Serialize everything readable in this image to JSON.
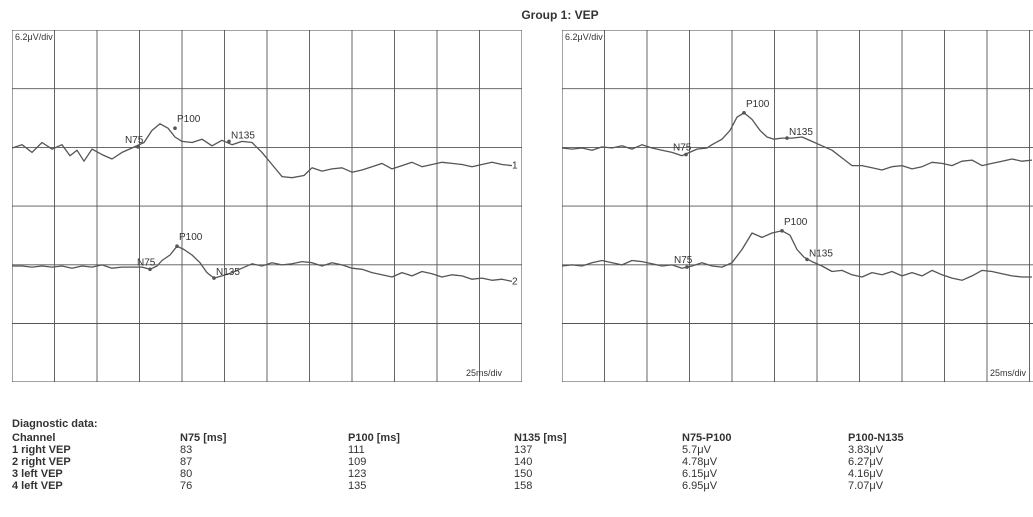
{
  "title": "Group 1: VEP",
  "chart_data": [
    {
      "type": "line",
      "panel": "left",
      "amplitude_scale": "6.2μV/div",
      "time_scale": "25ms/div",
      "traces": [
        {
          "label": "1",
          "points": [
            [
              0,
              0
            ],
            [
              10,
              0.3
            ],
            [
              20,
              -0.4
            ],
            [
              30,
              0.5
            ],
            [
              40,
              -0.1
            ],
            [
              50,
              0.3
            ],
            [
              58,
              -0.7
            ],
            [
              65,
              -0.2
            ],
            [
              72,
              -1.2
            ],
            [
              80,
              -0.1
            ],
            [
              90,
              -0.6
            ],
            [
              100,
              -1.0
            ],
            [
              110,
              -0.4
            ],
            [
              120,
              0.0
            ],
            [
              132,
              0.5
            ],
            [
              140,
              1.6
            ],
            [
              148,
              2.2
            ],
            [
              156,
              1.8
            ],
            [
              163,
              1.0
            ],
            [
              170,
              0.6
            ],
            [
              180,
              0.5
            ],
            [
              190,
              0.8
            ],
            [
              200,
              0.2
            ],
            [
              210,
              0.7
            ],
            [
              220,
              0.3
            ],
            [
              230,
              0.6
            ],
            [
              240,
              0.5
            ],
            [
              250,
              -0.4
            ],
            [
              260,
              -1.5
            ],
            [
              270,
              -2.6
            ],
            [
              280,
              -2.7
            ],
            [
              292,
              -2.5
            ],
            [
              300,
              -1.8
            ],
            [
              310,
              -2.1
            ],
            [
              320,
              -1.9
            ],
            [
              330,
              -1.8
            ],
            [
              340,
              -2.2
            ],
            [
              350,
              -2.0
            ],
            [
              360,
              -1.7
            ],
            [
              370,
              -1.4
            ],
            [
              380,
              -1.9
            ],
            [
              390,
              -1.6
            ],
            [
              400,
              -1.3
            ],
            [
              410,
              -1.7
            ],
            [
              420,
              -1.5
            ],
            [
              430,
              -1.3
            ],
            [
              440,
              -1.4
            ],
            [
              450,
              -1.5
            ],
            [
              460,
              -1.7
            ],
            [
              470,
              -1.5
            ],
            [
              480,
              -1.3
            ],
            [
              490,
              -1.5
            ],
            [
              500,
              -1.6
            ]
          ],
          "peaks": [
            {
              "name": "N75",
              "t": 126,
              "v": 0.1
            },
            {
              "name": "P100",
              "t": 163,
              "v": 1.8
            },
            {
              "name": "N135",
              "t": 217,
              "v": 0.6
            }
          ]
        },
        {
          "label": "2",
          "points": [
            [
              0,
              0
            ],
            [
              10,
              0.0
            ],
            [
              20,
              -0.1
            ],
            [
              30,
              0.0
            ],
            [
              40,
              -0.1
            ],
            [
              50,
              0.0
            ],
            [
              60,
              -0.2
            ],
            [
              70,
              0.0
            ],
            [
              80,
              -0.1
            ],
            [
              90,
              0.1
            ],
            [
              100,
              -0.2
            ],
            [
              110,
              -0.1
            ],
            [
              120,
              -0.1
            ],
            [
              130,
              -0.1
            ],
            [
              138,
              -0.3
            ],
            [
              145,
              0.0
            ],
            [
              150,
              0.5
            ],
            [
              158,
              1.0
            ],
            [
              165,
              1.8
            ],
            [
              172,
              1.5
            ],
            [
              180,
              1.0
            ],
            [
              188,
              0.3
            ],
            [
              195,
              -0.6
            ],
            [
              202,
              -1.1
            ],
            [
              210,
              -0.9
            ],
            [
              220,
              -0.6
            ],
            [
              230,
              -0.2
            ],
            [
              240,
              0.2
            ],
            [
              250,
              0.0
            ],
            [
              260,
              0.3
            ],
            [
              270,
              0.1
            ],
            [
              280,
              0.2
            ],
            [
              290,
              0.4
            ],
            [
              300,
              0.3
            ],
            [
              310,
              0.0
            ],
            [
              320,
              0.3
            ],
            [
              330,
              0.1
            ],
            [
              340,
              -0.2
            ],
            [
              350,
              -0.3
            ],
            [
              360,
              -0.6
            ],
            [
              370,
              -0.8
            ],
            [
              380,
              -1.0
            ],
            [
              390,
              -0.6
            ],
            [
              400,
              -0.9
            ],
            [
              410,
              -0.5
            ],
            [
              420,
              -0.7
            ],
            [
              430,
              -1.0
            ],
            [
              440,
              -0.8
            ],
            [
              450,
              -0.9
            ],
            [
              460,
              -1.2
            ],
            [
              470,
              -1.1
            ],
            [
              480,
              -1.3
            ],
            [
              490,
              -1.2
            ],
            [
              500,
              -1.4
            ]
          ],
          "peaks": [
            {
              "name": "N75",
              "t": 138,
              "v": -0.3
            },
            {
              "name": "P100",
              "t": 165,
              "v": 1.8
            },
            {
              "name": "N135",
              "t": 202,
              "v": -1.1
            }
          ]
        }
      ]
    },
    {
      "type": "line",
      "panel": "right",
      "amplitude_scale": "6.2μV/div",
      "time_scale": "25ms/div",
      "traces": [
        {
          "label": "",
          "points": [
            [
              0,
              0
            ],
            [
              10,
              -0.1
            ],
            [
              20,
              0.0
            ],
            [
              30,
              -0.2
            ],
            [
              40,
              0.1
            ],
            [
              50,
              0.0
            ],
            [
              60,
              0.2
            ],
            [
              70,
              -0.1
            ],
            [
              80,
              0.3
            ],
            [
              90,
              0.0
            ],
            [
              100,
              -0.2
            ],
            [
              110,
              -0.4
            ],
            [
              120,
              -0.7
            ],
            [
              125,
              -0.5
            ],
            [
              135,
              -0.1
            ],
            [
              145,
              0.0
            ],
            [
              150,
              0.3
            ],
            [
              160,
              0.8
            ],
            [
              168,
              1.6
            ],
            [
              175,
              2.8
            ],
            [
              182,
              3.2
            ],
            [
              190,
              2.6
            ],
            [
              198,
              1.6
            ],
            [
              205,
              1.0
            ],
            [
              212,
              0.8
            ],
            [
              220,
              0.9
            ],
            [
              230,
              0.9
            ],
            [
              240,
              1.0
            ],
            [
              250,
              0.6
            ],
            [
              260,
              0.2
            ],
            [
              270,
              -0.2
            ],
            [
              280,
              -0.9
            ],
            [
              290,
              -1.6
            ],
            [
              300,
              -1.6
            ],
            [
              310,
              -1.8
            ],
            [
              320,
              -2.0
            ],
            [
              330,
              -1.7
            ],
            [
              340,
              -1.6
            ],
            [
              350,
              -1.9
            ],
            [
              360,
              -1.7
            ],
            [
              370,
              -1.3
            ],
            [
              380,
              -1.4
            ],
            [
              390,
              -1.6
            ],
            [
              400,
              -1.2
            ],
            [
              410,
              -1.1
            ],
            [
              420,
              -1.6
            ],
            [
              430,
              -1.4
            ],
            [
              440,
              -1.2
            ],
            [
              450,
              -1.0
            ],
            [
              460,
              -1.2
            ],
            [
              470,
              -1.1
            ]
          ],
          "peaks": [
            {
              "name": "N75",
              "t": 124,
              "v": -0.6
            },
            {
              "name": "P100",
              "t": 182,
              "v": 3.2
            },
            {
              "name": "N135",
              "t": 225,
              "v": 0.9
            }
          ]
        },
        {
          "label": "",
          "points": [
            [
              0,
              0
            ],
            [
              10,
              0.1
            ],
            [
              20,
              0.0
            ],
            [
              30,
              0.3
            ],
            [
              40,
              0.5
            ],
            [
              50,
              0.3
            ],
            [
              60,
              0.1
            ],
            [
              70,
              0.5
            ],
            [
              80,
              0.4
            ],
            [
              90,
              0.2
            ],
            [
              100,
              0.0
            ],
            [
              110,
              0.1
            ],
            [
              120,
              -0.2
            ],
            [
              130,
              0.0
            ],
            [
              140,
              0.3
            ],
            [
              150,
              0.0
            ],
            [
              160,
              -0.1
            ],
            [
              170,
              0.3
            ],
            [
              180,
              1.5
            ],
            [
              190,
              3.0
            ],
            [
              200,
              2.6
            ],
            [
              210,
              3.0
            ],
            [
              220,
              3.2
            ],
            [
              228,
              2.8
            ],
            [
              235,
              1.5
            ],
            [
              242,
              0.8
            ],
            [
              250,
              0.4
            ],
            [
              260,
              0.0
            ],
            [
              270,
              -0.5
            ],
            [
              280,
              -0.4
            ],
            [
              290,
              -0.8
            ],
            [
              300,
              -1.0
            ],
            [
              310,
              -0.6
            ],
            [
              320,
              -0.8
            ],
            [
              330,
              -0.5
            ],
            [
              340,
              -0.9
            ],
            [
              350,
              -0.6
            ],
            [
              360,
              -0.9
            ],
            [
              370,
              -0.4
            ],
            [
              380,
              -0.8
            ],
            [
              390,
              -1.1
            ],
            [
              400,
              -1.3
            ],
            [
              410,
              -0.9
            ],
            [
              420,
              -0.4
            ],
            [
              430,
              -0.5
            ],
            [
              440,
              -0.7
            ],
            [
              450,
              -0.9
            ],
            [
              460,
              -1.0
            ],
            [
              470,
              -1.0
            ]
          ],
          "peaks": [
            {
              "name": "N75",
              "t": 125,
              "v": -0.1
            },
            {
              "name": "P100",
              "t": 220,
              "v": 3.2
            },
            {
              "name": "N135",
              "t": 245,
              "v": 0.6
            }
          ]
        }
      ]
    }
  ],
  "diagnostic": {
    "heading": "Diagnostic data:",
    "columns": [
      "Channel",
      "N75 [ms]",
      "P100 [ms]",
      "N135 [ms]",
      "N75-P100",
      "P100-N135"
    ],
    "rows": [
      [
        "1 right VEP",
        "83",
        "111",
        "137",
        "5.7μV",
        "3.83μV"
      ],
      [
        "2 right VEP",
        "87",
        "109",
        "140",
        "4.78μV",
        "6.27μV"
      ],
      [
        "3 left VEP",
        "80",
        "123",
        "150",
        "6.15μV",
        "4.16μV"
      ],
      [
        "4 left VEP",
        "76",
        "135",
        "158",
        "6.95μV",
        "7.07μV"
      ]
    ]
  }
}
